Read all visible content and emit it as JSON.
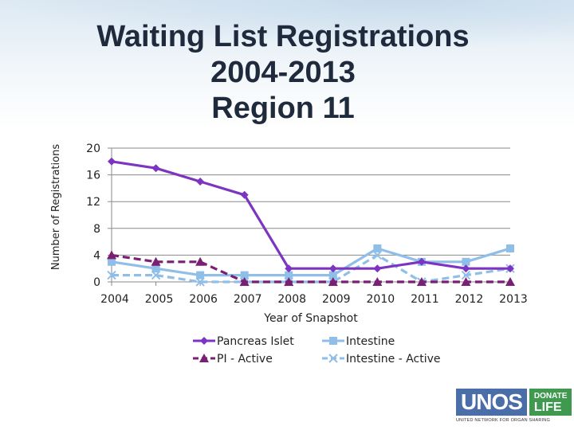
{
  "title": {
    "line1": "Waiting List Registrations",
    "line2": "2004-2013",
    "line3": "Region 11"
  },
  "logo": {
    "brand": "UNOS",
    "donate": "DONATE",
    "life": "LIFE",
    "tagline": "UNITED NETWORK FOR ORGAN SHARING"
  },
  "colors": {
    "pancreas_islet": "#7d35c1",
    "pi_active": "#7a1f73",
    "intestine": "#8fbfe8",
    "intestine_active": "#8fbfe8"
  },
  "chart_data": {
    "type": "line",
    "xlabel": "Year of Snapshot",
    "ylabel": "Number of Registrations",
    "ylim": [
      0,
      20
    ],
    "yticks": [
      0,
      4,
      8,
      12,
      16,
      20
    ],
    "categories": [
      "2004",
      "2005",
      "2006",
      "2007",
      "2008",
      "2009",
      "2010",
      "2011",
      "2012",
      "2013"
    ],
    "legend_position": "bottom",
    "series": [
      {
        "name": "Pancreas Islet",
        "marker": "diamond",
        "dash": "solid",
        "color": "#7d35c1",
        "values": [
          18,
          17,
          15,
          13,
          2,
          2,
          2,
          3,
          2,
          2
        ]
      },
      {
        "name": "Intestine",
        "marker": "square",
        "dash": "solid",
        "color": "#8fbfe8",
        "values": [
          3,
          2,
          1,
          1,
          1,
          1,
          5,
          3,
          3,
          5
        ]
      },
      {
        "name": "PI - Active",
        "marker": "triangle",
        "dash": "dashed",
        "color": "#7a1f73",
        "values": [
          4,
          3,
          3,
          0,
          0,
          0,
          0,
          0,
          0,
          0
        ]
      },
      {
        "name": "Intestine - Active",
        "marker": "x",
        "dash": "dashed",
        "color": "#8fbfe8",
        "values": [
          1,
          1,
          0,
          0,
          0,
          0,
          4,
          0,
          1,
          2
        ]
      }
    ]
  }
}
